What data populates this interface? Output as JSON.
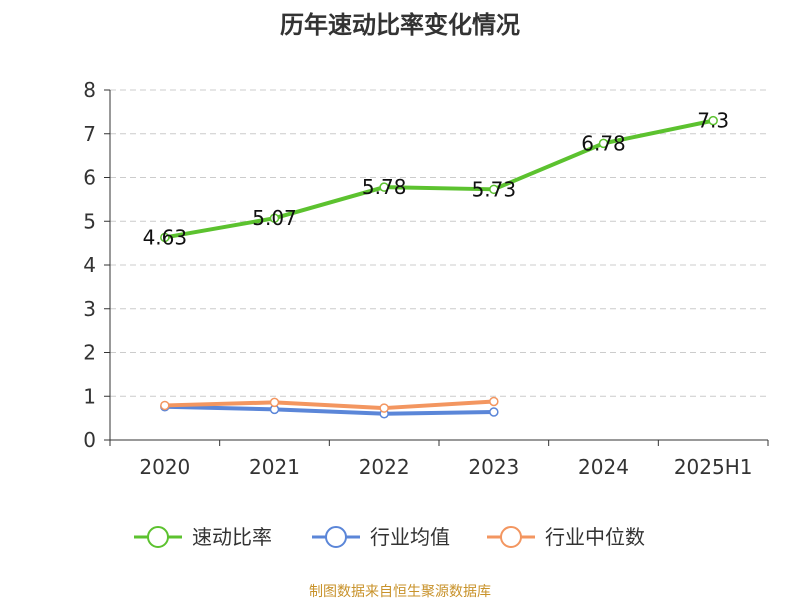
{
  "chart_data": {
    "type": "line",
    "title": "历年速动比率变化情况",
    "categories": [
      "2020",
      "2021",
      "2022",
      "2023",
      "2024",
      "2025H1"
    ],
    "y_ticks": [
      "0",
      "1",
      "2",
      "3",
      "4",
      "5",
      "6",
      "7",
      "8"
    ],
    "ylim": [
      0,
      8
    ],
    "grid": true,
    "legend_position": "bottom",
    "series": [
      {
        "name": "速动比率",
        "color": "#5cc22f",
        "values": [
          4.63,
          5.07,
          5.78,
          5.73,
          6.78,
          7.3
        ],
        "labels": [
          "4.63",
          "5.07",
          "5.78",
          "5.73",
          "6.78",
          "7.3"
        ]
      },
      {
        "name": "行业均值",
        "color": "#5b86d8",
        "values": [
          0.76,
          0.7,
          0.6,
          0.64,
          null,
          null
        ]
      },
      {
        "name": "行业中位数",
        "color": "#f39660",
        "values": [
          0.79,
          0.86,
          0.73,
          0.88,
          null,
          null
        ]
      }
    ]
  },
  "source": {
    "text": "制图数据来自恒生聚源数据库",
    "color": "#c8922a"
  }
}
